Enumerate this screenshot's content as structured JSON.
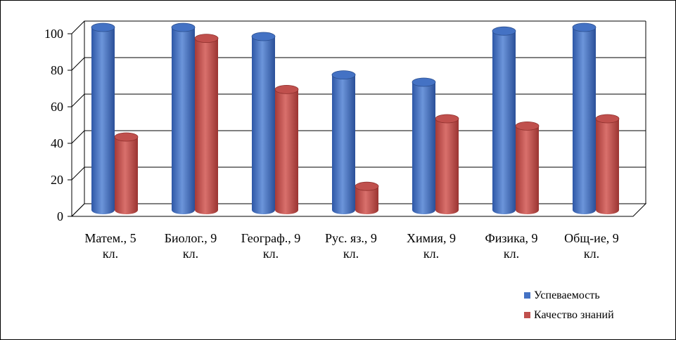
{
  "chart_data": {
    "type": "bar",
    "title": "",
    "xlabel": "",
    "ylabel": "",
    "ylim": [
      0,
      100
    ],
    "yticks": [
      0,
      20,
      40,
      60,
      80,
      100
    ],
    "grid": true,
    "legend_position": "bottom-right",
    "categories": [
      [
        "Матем., 5",
        "кл."
      ],
      [
        "Биолог., 9",
        "кл."
      ],
      [
        "Географ., 9",
        "кл."
      ],
      [
        "Рус. яз., 9",
        "кл."
      ],
      [
        "Химия, 9",
        "кл."
      ],
      [
        "Физика, 9",
        "кл."
      ],
      [
        "Общ-ие, 9",
        "кл."
      ]
    ],
    "series": [
      {
        "name": "Успеваемость",
        "color": "#4472C4",
        "values": [
          100,
          100,
          95,
          74,
          70,
          98,
          100
        ]
      },
      {
        "name": "Качество знаний",
        "color": "#C0504D",
        "values": [
          40,
          94,
          66,
          13,
          50,
          46,
          50
        ]
      }
    ]
  }
}
